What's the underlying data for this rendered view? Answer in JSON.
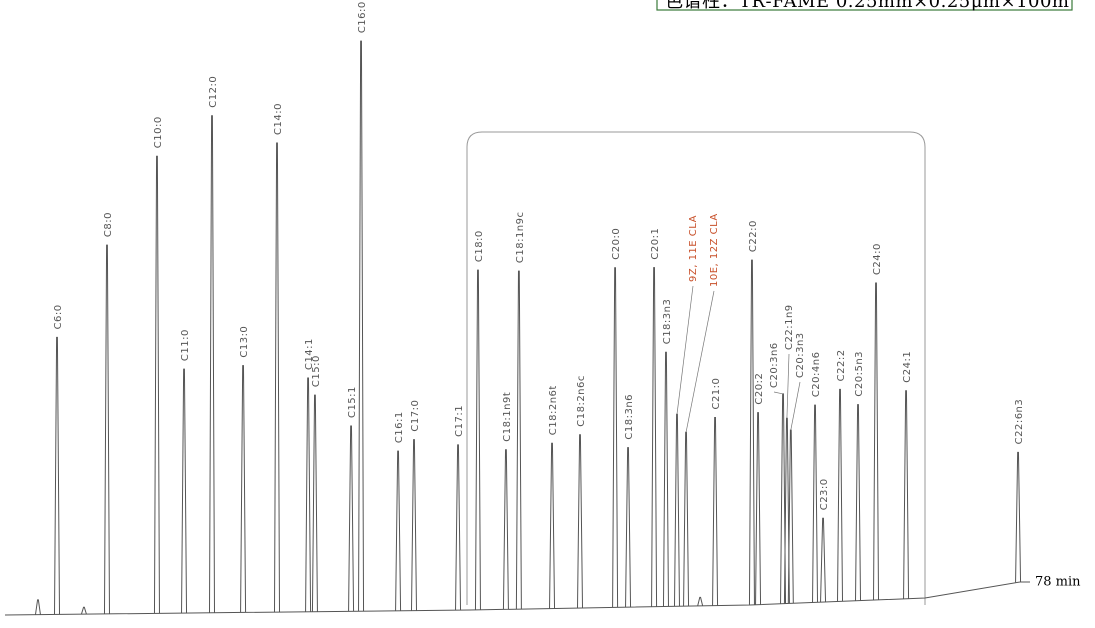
{
  "chart_data": {
    "type": "chromatogram",
    "title": "色谱柱：TR-FAME 0.25mm×0.25μm×100m",
    "categories": [
      null,
      "C6:0",
      null,
      "C8:0",
      "C10:0",
      "C11:0",
      "C12:0",
      "C13:0",
      "C14:0",
      "C14:1",
      "C15:0",
      "C15:1",
      "C16:0",
      "C16:1",
      "C17:0",
      "C17:1",
      "C18:0",
      "C18:1n9t",
      "C18:1n9c",
      "C18:2n6t",
      "C18:2n6c",
      "C20:0",
      "C18:3n6",
      "C20:1",
      "C18:3n3",
      "9Z, 11E CLA",
      "10E, 12Z CLA",
      null,
      "C21:0",
      "C22:0",
      "C20:2",
      "C20:3n6",
      "C22:1n9",
      "C20:3n3",
      "C20:4n6",
      "C23:0",
      "C22:2",
      "C20:5n3",
      "C24:0",
      "C24:1",
      "C22:6n3"
    ],
    "x": [
      2.16,
      3.63,
      5.71,
      7.49,
      11.35,
      13.44,
      15.6,
      18.0,
      20.62,
      23.02,
      23.55,
      26.34,
      27.11,
      29.97,
      31.2,
      34.6,
      36.14,
      38.3,
      39.3,
      41.86,
      44.02,
      46.73,
      47.73,
      49.74,
      50.66,
      51.51,
      52.21,
      53.3,
      54.45,
      57.3,
      57.77,
      59.7,
      60.0,
      60.3,
      62.17,
      62.79,
      64.1,
      65.49,
      66.88,
      69.2,
      77.85
    ],
    "values": [
      2.6,
      48.6,
      1.2,
      64.7,
      80.2,
      42.8,
      87.2,
      43.3,
      82.3,
      41,
      38,
      32.5,
      100,
      28,
      30,
      29,
      59.6,
      28,
      59.3,
      29,
      30.4,
      59.6,
      28,
      59.5,
      44.6,
      33.7,
      30.5,
      1.5,
      33,
      60.5,
      33.7,
      36.8,
      32.5,
      30.4,
      34.6,
      14.7,
      37.2,
      34.4,
      55.6,
      36.5,
      22.8
    ],
    "xlim": [
      0,
      78
    ],
    "ylim": [
      0,
      100
    ],
    "xticks": [
      {
        "value": 78,
        "label": "78 min"
      }
    ],
    "color": "#555555",
    "label_color": "#555555",
    "highlight_indices": [
      25,
      26
    ],
    "highlight_color": "#c8502a"
  }
}
